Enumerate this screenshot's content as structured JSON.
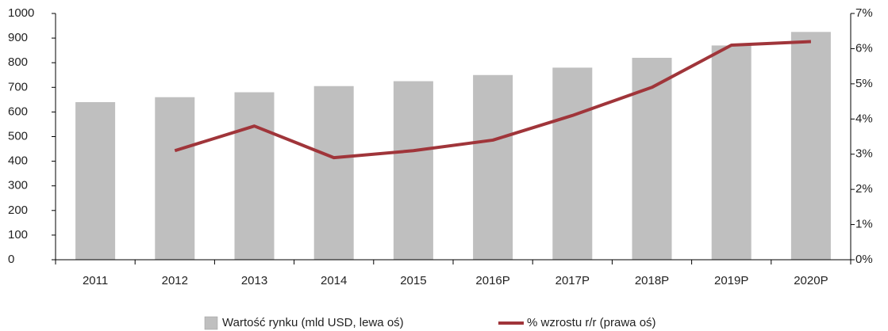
{
  "chart_data": {
    "type": "bar_line",
    "categories": [
      "2011",
      "2012",
      "2013",
      "2014",
      "2015",
      "2016P",
      "2017P",
      "2018P",
      "2019P",
      "2020P"
    ],
    "series": [
      {
        "name": "Wartość rynku (mld USD, lewa oś)",
        "type": "bar",
        "color": "#bfbfbf",
        "values": [
          640,
          660,
          680,
          705,
          725,
          750,
          780,
          820,
          870,
          925
        ]
      },
      {
        "name": "% wzrostu r/r (prawa oś)",
        "type": "line",
        "axis": "y2",
        "color": "#a0353a",
        "values": [
          null,
          3.1,
          3.8,
          2.9,
          3.1,
          3.4,
          4.1,
          4.9,
          6.1,
          6.2
        ]
      }
    ],
    "ylim": [
      0,
      1000
    ],
    "yticks": [
      0,
      100,
      200,
      300,
      400,
      500,
      600,
      700,
      800,
      900,
      1000
    ],
    "y2lim": [
      0,
      7
    ],
    "y2ticks": [
      {
        "value": 0,
        "label": "0%"
      },
      {
        "value": 1,
        "label": "1%"
      },
      {
        "value": 2,
        "label": "2%"
      },
      {
        "value": 3,
        "label": "3%"
      },
      {
        "value": 4,
        "label": "4%"
      },
      {
        "value": 5,
        "label": "5%"
      },
      {
        "value": 6,
        "label": "6%"
      },
      {
        "value": 7,
        "label": "7%"
      }
    ],
    "legend": "bottom"
  }
}
